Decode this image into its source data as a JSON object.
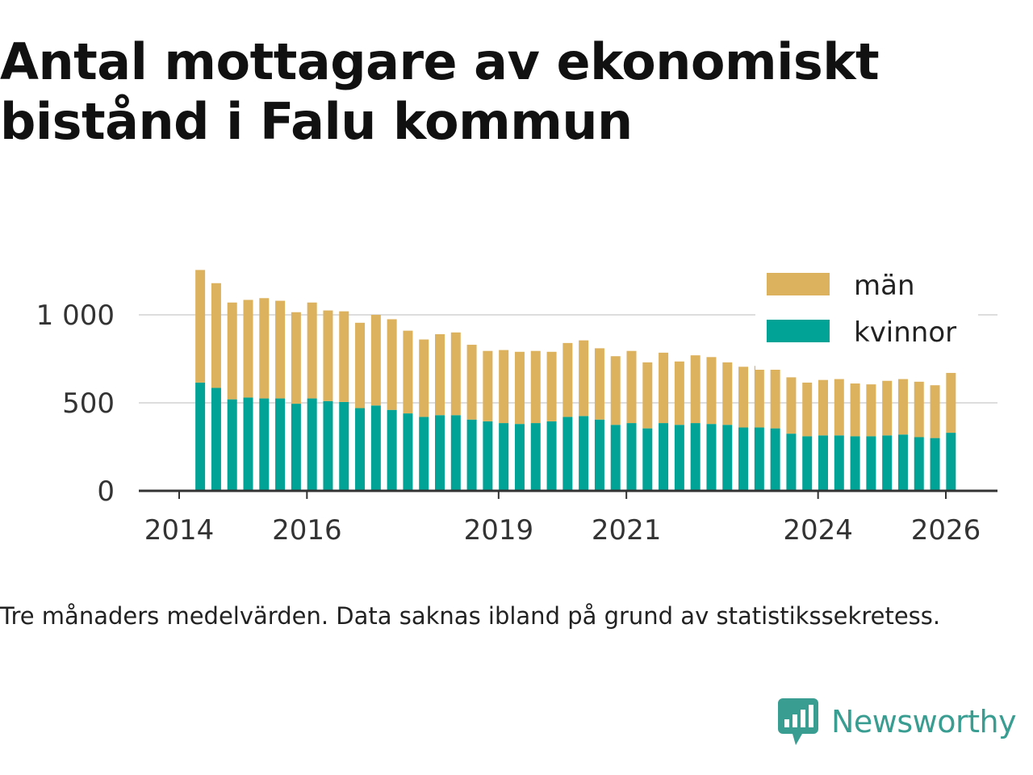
{
  "title": "Antal mottagare av ekonomiskt bistånd i Falu kommun",
  "caption": "Tre månaders medelvärden. Data saknas ibland på grund av statistikssekretess.",
  "brand": {
    "name": "Newsworthy",
    "icon": "newsworthy-logo-icon",
    "color": "#3a9d92"
  },
  "colors": {
    "kvinnor": "#00a396",
    "man": "#ddb25f",
    "grid": "#dddddd",
    "axis": "#333333"
  },
  "chart_data": {
    "type": "bar",
    "stacked": true,
    "x_unit": "year",
    "xlim": [
      2014,
      2026.4
    ],
    "ylim": [
      0,
      1250
    ],
    "grid": "horizontal",
    "legend_position": "top-right",
    "x_ticks": [
      {
        "value": 2014,
        "label": "2014"
      },
      {
        "value": 2016,
        "label": "2016"
      },
      {
        "value": 2019,
        "label": "2019"
      },
      {
        "value": 2021,
        "label": "2021"
      },
      {
        "value": 2024,
        "label": "2024"
      },
      {
        "value": 2026,
        "label": "2026"
      }
    ],
    "y_ticks": [
      {
        "value": 0,
        "label": "0"
      },
      {
        "value": 500,
        "label": "500"
      },
      {
        "value": 1000,
        "label": "1 000"
      }
    ],
    "x": [
      2014.33,
      2014.58,
      2014.83,
      2015.08,
      2015.33,
      2015.58,
      2015.83,
      2016.08,
      2016.33,
      2016.58,
      2016.83,
      2017.08,
      2017.33,
      2017.58,
      2017.83,
      2018.08,
      2018.33,
      2018.58,
      2018.83,
      2019.08,
      2019.33,
      2019.58,
      2019.83,
      2020.08,
      2020.33,
      2020.58,
      2020.83,
      2021.08,
      2021.33,
      2021.58,
      2021.83,
      2022.08,
      2022.33,
      2022.58,
      2022.83,
      2023.08,
      2023.33,
      2023.58,
      2023.83,
      2024.08,
      2024.33,
      2024.58,
      2024.83,
      2025.08,
      2025.33,
      2025.58,
      2025.83,
      2026.08
    ],
    "series": [
      {
        "name": "kvinnor",
        "color": "#00a396",
        "values": [
          615,
          585,
          520,
          530,
          525,
          525,
          495,
          525,
          510,
          505,
          470,
          485,
          460,
          440,
          420,
          430,
          430,
          405,
          395,
          385,
          380,
          385,
          395,
          420,
          425,
          405,
          375,
          385,
          355,
          385,
          375,
          385,
          380,
          375,
          360,
          360,
          355,
          325,
          310,
          315,
          315,
          310,
          310,
          315,
          320,
          305,
          300,
          330
        ]
      },
      {
        "name": "män",
        "color": "#ddb25f",
        "values": [
          640,
          595,
          550,
          555,
          570,
          555,
          520,
          545,
          515,
          515,
          485,
          515,
          515,
          470,
          440,
          460,
          470,
          425,
          400,
          415,
          410,
          410,
          395,
          420,
          430,
          405,
          390,
          410,
          375,
          400,
          360,
          385,
          380,
          355,
          345,
          350,
          345,
          320,
          305,
          315,
          320,
          300,
          295,
          310,
          315,
          315,
          300,
          340
        ]
      }
    ]
  }
}
